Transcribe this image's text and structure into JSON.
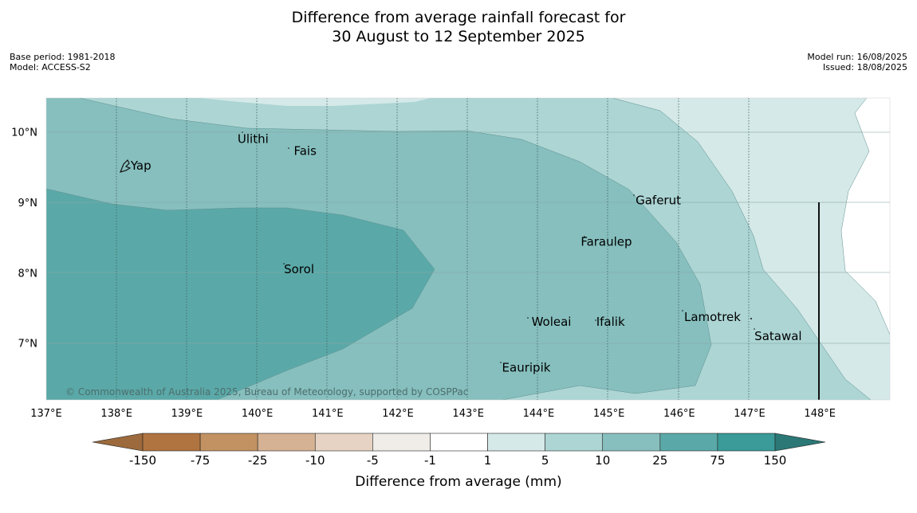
{
  "title": {
    "line1": "Difference from average rainfall forecast for",
    "line2": "30 August to 12 September 2025"
  },
  "meta_left": {
    "base_period": "Base period: 1981-2018",
    "model": "Model: ACCESS-S2"
  },
  "meta_right": {
    "model_run": "Model run: 16/08/2025",
    "issued": "Issued: 18/08/2025"
  },
  "map": {
    "lon_range": [
      137.0,
      149.0
    ],
    "lat_range": [
      6.2,
      10.5
    ],
    "lat_labels": [
      "10°N",
      "9°N",
      "8°N",
      "7°N"
    ],
    "lon_labels": [
      "137°E",
      "138°E",
      "139°E",
      "140°E",
      "141°E",
      "142°E",
      "143°E",
      "144°E",
      "145°E",
      "146°E",
      "147°E",
      "148°E"
    ],
    "places": [
      {
        "name": "Yap",
        "lon": 138.2,
        "lat": 9.52
      },
      {
        "name": "Ulithi",
        "lon": 139.72,
        "lat": 9.9
      },
      {
        "name": "Fais",
        "lon": 140.52,
        "lat": 9.73
      },
      {
        "name": "Gaferut",
        "lon": 145.38,
        "lat": 9.03
      },
      {
        "name": "Faraulep",
        "lon": 144.6,
        "lat": 8.44
      },
      {
        "name": "Sorol",
        "lon": 140.38,
        "lat": 8.05
      },
      {
        "name": "Lamotrek",
        "lon": 146.07,
        "lat": 7.37
      },
      {
        "name": "Woleai",
        "lon": 143.9,
        "lat": 7.3
      },
      {
        "name": "Ifalik",
        "lon": 144.82,
        "lat": 7.3
      },
      {
        "name": "Satawal",
        "lon": 147.07,
        "lat": 7.1
      },
      {
        "name": "Eauripik",
        "lon": 143.48,
        "lat": 6.65
      }
    ],
    "copyright": "© Commonwealth of Australia 2025, Bureau of Meteorology, supported by COSPPac"
  },
  "colorbar": {
    "ticks": [
      "-150",
      "-75",
      "-25",
      "-10",
      "-5",
      "-1",
      "1",
      "5",
      "10",
      "25",
      "75",
      "150"
    ],
    "colors": [
      "#9c6a3c",
      "#b07440",
      "#c29262",
      "#d5b293",
      "#e6d3c3",
      "#f0ede8",
      "#ffffff",
      "#d4e9e8",
      "#acd5d4",
      "#86bfbe",
      "#5aa9a8",
      "#3a9b99",
      "#2b7876"
    ],
    "label": "Difference from average (mm)"
  }
}
